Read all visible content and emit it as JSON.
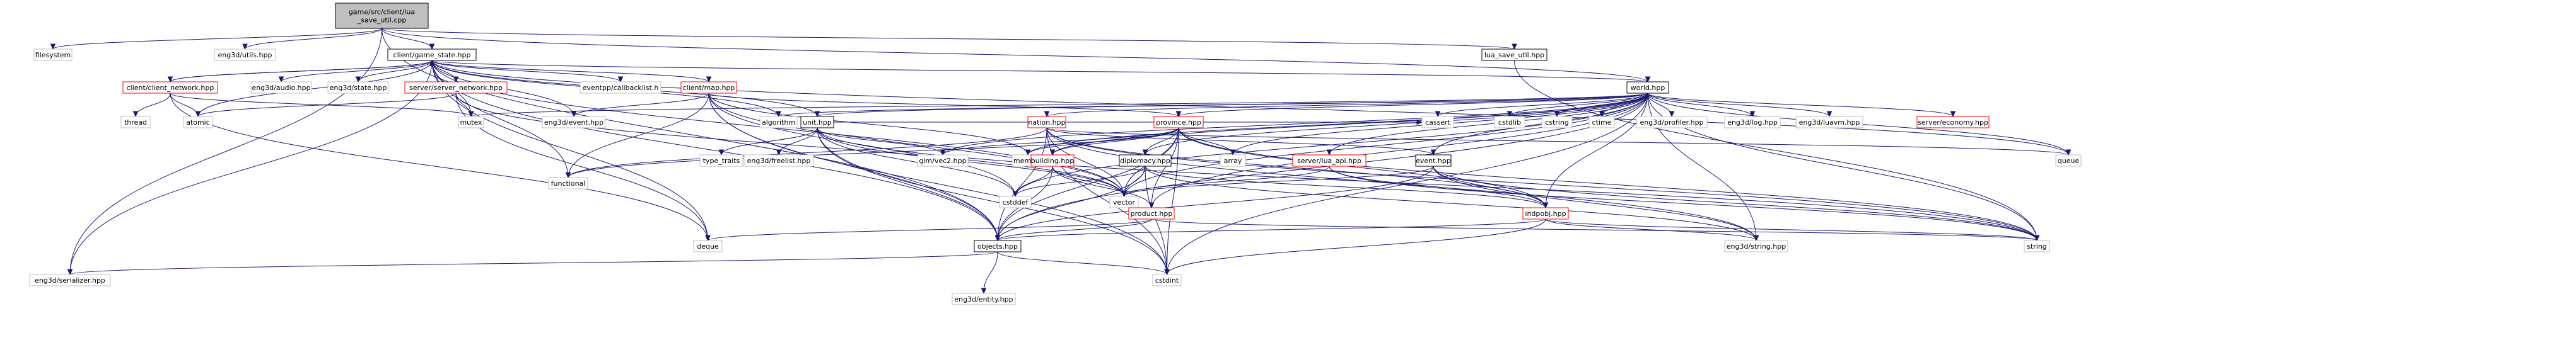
{
  "graph": {
    "nodes": [
      {
        "id": "root",
        "lines": [
          "game/src/client/lua",
          "_save_util.cpp"
        ],
        "fill": "#bfbfbf",
        "stroke": "#000000",
        "link": false
      },
      {
        "id": "filesystem",
        "lines": [
          "filesystem"
        ],
        "fill": "#ffffff",
        "stroke": "#bfbfbf",
        "link": false
      },
      {
        "id": "utils",
        "lines": [
          "eng3d/utils.hpp"
        ],
        "fill": "#ffffff",
        "stroke": "#bfbfbf",
        "link": false
      },
      {
        "id": "lua_save",
        "lines": [
          "lua_save_util.hpp"
        ],
        "fill": "#ffffff",
        "stroke": "#000000",
        "link": true
      },
      {
        "id": "game_state",
        "lines": [
          "client/game_state.hpp"
        ],
        "fill": "#ffffff",
        "stroke": "#000000",
        "link": true
      },
      {
        "id": "world",
        "lines": [
          "world.hpp"
        ],
        "fill": "#ffffff",
        "stroke": "#000000",
        "link": true
      },
      {
        "id": "client_network",
        "lines": [
          "client/client_network.hpp"
        ],
        "fill": "#ffffff",
        "stroke": "#ff0000",
        "link": true
      },
      {
        "id": "audio",
        "lines": [
          "eng3d/audio.hpp"
        ],
        "fill": "#ffffff",
        "stroke": "#bfbfbf",
        "link": false
      },
      {
        "id": "state",
        "lines": [
          "eng3d/state.hpp"
        ],
        "fill": "#ffffff",
        "stroke": "#bfbfbf",
        "link": false
      },
      {
        "id": "server_network",
        "lines": [
          "server/server_network.hpp"
        ],
        "fill": "#ffffff",
        "stroke": "#ff0000",
        "link": true
      },
      {
        "id": "eventpp",
        "lines": [
          "eventpp/callbacklist.h"
        ],
        "fill": "#ffffff",
        "stroke": "#bfbfbf",
        "link": false
      },
      {
        "id": "client_map",
        "lines": [
          "client/map.hpp"
        ],
        "fill": "#ffffff",
        "stroke": "#ff0000",
        "link": true
      },
      {
        "id": "thread",
        "lines": [
          "thread"
        ],
        "fill": "#ffffff",
        "stroke": "#bfbfbf",
        "link": false
      },
      {
        "id": "atomic",
        "lines": [
          "atomic"
        ],
        "fill": "#ffffff",
        "stroke": "#bfbfbf",
        "link": false
      },
      {
        "id": "mutex",
        "lines": [
          "mutex"
        ],
        "fill": "#ffffff",
        "stroke": "#bfbfbf",
        "link": false
      },
      {
        "id": "eng3d_event",
        "lines": [
          "eng3d/event.hpp"
        ],
        "fill": "#ffffff",
        "stroke": "#bfbfbf",
        "link": false
      },
      {
        "id": "algorithm",
        "lines": [
          "algorithm"
        ],
        "fill": "#ffffff",
        "stroke": "#bfbfbf",
        "link": false
      },
      {
        "id": "unit",
        "lines": [
          "unit.hpp"
        ],
        "fill": "#ffffff",
        "stroke": "#000000",
        "link": true
      },
      {
        "id": "province",
        "lines": [
          "province.hpp"
        ],
        "fill": "#ffffff",
        "stroke": "#ff0000",
        "link": true
      },
      {
        "id": "cassert",
        "lines": [
          "cassert"
        ],
        "fill": "#ffffff",
        "stroke": "#bfbfbf",
        "link": false
      },
      {
        "id": "cstdlib",
        "lines": [
          "cstdlib"
        ],
        "fill": "#ffffff",
        "stroke": "#bfbfbf",
        "link": false
      },
      {
        "id": "cstring",
        "lines": [
          "cstring"
        ],
        "fill": "#ffffff",
        "stroke": "#bfbfbf",
        "link": false
      },
      {
        "id": "ctime",
        "lines": [
          "ctime"
        ],
        "fill": "#ffffff",
        "stroke": "#bfbfbf",
        "link": false
      },
      {
        "id": "profiler",
        "lines": [
          "eng3d/profiler.hpp"
        ],
        "fill": "#ffffff",
        "stroke": "#bfbfbf",
        "link": false
      },
      {
        "id": "log",
        "lines": [
          "eng3d/log.hpp"
        ],
        "fill": "#ffffff",
        "stroke": "#bfbfbf",
        "link": false
      },
      {
        "id": "luavm",
        "lines": [
          "eng3d/luavm.hpp"
        ],
        "fill": "#ffffff",
        "stroke": "#bfbfbf",
        "link": false
      },
      {
        "id": "economy",
        "lines": [
          "server/economy.hpp"
        ],
        "fill": "#ffffff",
        "stroke": "#ff0000",
        "link": true
      },
      {
        "id": "nation",
        "lines": [
          "nation.hpp"
        ],
        "fill": "#ffffff",
        "stroke": "#ff0000",
        "link": true
      },
      {
        "id": "queue",
        "lines": [
          "queue"
        ],
        "fill": "#ffffff",
        "stroke": "#bfbfbf",
        "link": false
      },
      {
        "id": "type_traits",
        "lines": [
          "type_traits"
        ],
        "fill": "#ffffff",
        "stroke": "#bfbfbf",
        "link": false
      },
      {
        "id": "freelist",
        "lines": [
          "eng3d/freelist.hpp"
        ],
        "fill": "#ffffff",
        "stroke": "#bfbfbf",
        "link": false
      },
      {
        "id": "glm",
        "lines": [
          "glm/vec2.hpp"
        ],
        "fill": "#ffffff",
        "stroke": "#bfbfbf",
        "link": false
      },
      {
        "id": "memory",
        "lines": [
          "memory"
        ],
        "fill": "#ffffff",
        "stroke": "#bfbfbf",
        "link": false
      },
      {
        "id": "functional",
        "lines": [
          "functional"
        ],
        "fill": "#ffffff",
        "stroke": "#bfbfbf",
        "link": false
      },
      {
        "id": "building",
        "lines": [
          "building.hpp"
        ],
        "fill": "#ffffff",
        "stroke": "#ff0000",
        "link": true
      },
      {
        "id": "diplomacy",
        "lines": [
          "diplomacy.hpp"
        ],
        "fill": "#ffffff",
        "stroke": "#000000",
        "link": true
      },
      {
        "id": "array",
        "lines": [
          "array"
        ],
        "fill": "#ffffff",
        "stroke": "#bfbfbf",
        "link": false
      },
      {
        "id": "lua_api",
        "lines": [
          "server/lua_api.hpp"
        ],
        "fill": "#ffffff",
        "stroke": "#ff0000",
        "link": true
      },
      {
        "id": "event",
        "lines": [
          "event.hpp"
        ],
        "fill": "#ffffff",
        "stroke": "#000000",
        "link": true
      },
      {
        "id": "vector",
        "lines": [
          "vector"
        ],
        "fill": "#ffffff",
        "stroke": "#bfbfbf",
        "link": false
      },
      {
        "id": "cstddef",
        "lines": [
          "cstddef"
        ],
        "fill": "#ffffff",
        "stroke": "#bfbfbf",
        "link": false
      },
      {
        "id": "product",
        "lines": [
          "product.hpp"
        ],
        "fill": "#ffffff",
        "stroke": "#ff0000",
        "link": true
      },
      {
        "id": "indpobj",
        "lines": [
          "indpobj.hpp"
        ],
        "fill": "#ffffff",
        "stroke": "#ff0000",
        "link": true
      },
      {
        "id": "deque",
        "lines": [
          "deque"
        ],
        "fill": "#ffffff",
        "stroke": "#bfbfbf",
        "link": false
      },
      {
        "id": "objects",
        "lines": [
          "objects.hpp"
        ],
        "fill": "#ffffff",
        "stroke": "#000000",
        "link": true
      },
      {
        "id": "string",
        "lines": [
          "string"
        ],
        "fill": "#ffffff",
        "stroke": "#bfbfbf",
        "link": false
      },
      {
        "id": "eng3d_string",
        "lines": [
          "eng3d/string.hpp"
        ],
        "fill": "#ffffff",
        "stroke": "#bfbfbf",
        "link": false
      },
      {
        "id": "serializer",
        "lines": [
          "eng3d/serializer.hpp"
        ],
        "fill": "#ffffff",
        "stroke": "#bfbfbf",
        "link": false
      },
      {
        "id": "cstdint",
        "lines": [
          "cstdint"
        ],
        "fill": "#ffffff",
        "stroke": "#bfbfbf",
        "link": false
      },
      {
        "id": "entity",
        "lines": [
          "eng3d/entity.hpp"
        ],
        "fill": "#ffffff",
        "stroke": "#bfbfbf",
        "link": false
      }
    ],
    "edges": [
      [
        "root",
        "filesystem"
      ],
      [
        "root",
        "utils"
      ],
      [
        "root",
        "lua_save"
      ],
      [
        "root",
        "game_state"
      ],
      [
        "root",
        "world"
      ],
      [
        "root",
        "serializer"
      ],
      [
        "root",
        "objects"
      ],
      [
        "lua_save",
        "string"
      ],
      [
        "game_state",
        "client_network"
      ],
      [
        "game_state",
        "audio"
      ],
      [
        "game_state",
        "state"
      ],
      [
        "game_state",
        "server_network"
      ],
      [
        "game_state",
        "eventpp"
      ],
      [
        "game_state",
        "client_map"
      ],
      [
        "game_state",
        "world"
      ],
      [
        "game_state",
        "atomic"
      ],
      [
        "game_state",
        "mutex"
      ],
      [
        "game_state",
        "eng3d_event"
      ],
      [
        "game_state",
        "algorithm"
      ],
      [
        "game_state",
        "unit"
      ],
      [
        "game_state",
        "functional"
      ],
      [
        "game_state",
        "vector"
      ],
      [
        "game_state",
        "deque"
      ],
      [
        "game_state",
        "queue"
      ],
      [
        "game_state",
        "objects"
      ],
      [
        "game_state",
        "serializer"
      ],
      [
        "client_network",
        "thread"
      ],
      [
        "client_network",
        "atomic"
      ],
      [
        "client_network",
        "mutex"
      ],
      [
        "client_network",
        "deque"
      ],
      [
        "client_network",
        "game_state"
      ],
      [
        "server_network",
        "atomic"
      ],
      [
        "server_network",
        "mutex"
      ],
      [
        "server_network",
        "deque"
      ],
      [
        "server_network",
        "vector"
      ],
      [
        "client_map",
        "eng3d_event"
      ],
      [
        "client_map",
        "functional"
      ],
      [
        "client_map",
        "memory"
      ],
      [
        "client_map",
        "vector"
      ],
      [
        "client_map",
        "province"
      ],
      [
        "client_map",
        "objects"
      ],
      [
        "client_map",
        "cstdint"
      ],
      [
        "client_map",
        "cstddef"
      ],
      [
        "world",
        "mutex"
      ],
      [
        "world",
        "algorithm"
      ],
      [
        "world",
        "unit"
      ],
      [
        "world",
        "province"
      ],
      [
        "world",
        "cassert"
      ],
      [
        "world",
        "cstdlib"
      ],
      [
        "world",
        "cstring"
      ],
      [
        "world",
        "ctime"
      ],
      [
        "world",
        "profiler"
      ],
      [
        "world",
        "log"
      ],
      [
        "world",
        "luavm"
      ],
      [
        "world",
        "economy"
      ],
      [
        "world",
        "nation"
      ],
      [
        "world",
        "queue"
      ],
      [
        "world",
        "glm"
      ],
      [
        "world",
        "memory"
      ],
      [
        "world",
        "building"
      ],
      [
        "world",
        "diplomacy"
      ],
      [
        "world",
        "array"
      ],
      [
        "world",
        "lua_api"
      ],
      [
        "world",
        "event"
      ],
      [
        "world",
        "vector"
      ],
      [
        "world",
        "cstddef"
      ],
      [
        "world",
        "product"
      ],
      [
        "world",
        "indpobj"
      ],
      [
        "world",
        "objects"
      ],
      [
        "world",
        "string"
      ],
      [
        "world",
        "eng3d_string"
      ],
      [
        "world",
        "cstdint"
      ],
      [
        "unit",
        "type_traits"
      ],
      [
        "unit",
        "freelist"
      ],
      [
        "unit",
        "glm"
      ],
      [
        "unit",
        "cassert"
      ],
      [
        "unit",
        "cstddef"
      ],
      [
        "unit",
        "vector"
      ],
      [
        "unit",
        "string"
      ],
      [
        "unit",
        "cstdint"
      ],
      [
        "unit",
        "objects"
      ],
      [
        "province",
        "memory"
      ],
      [
        "province",
        "array"
      ],
      [
        "province",
        "glm"
      ],
      [
        "province",
        "functional"
      ],
      [
        "province",
        "building"
      ],
      [
        "province",
        "diplomacy"
      ],
      [
        "province",
        "product"
      ],
      [
        "province",
        "indpobj"
      ],
      [
        "province",
        "vector"
      ],
      [
        "province",
        "objects"
      ],
      [
        "province",
        "cstdint"
      ],
      [
        "province",
        "string"
      ],
      [
        "nation",
        "functional"
      ],
      [
        "nation",
        "vector"
      ],
      [
        "nation",
        "event"
      ],
      [
        "nation",
        "indpobj"
      ],
      [
        "nation",
        "objects"
      ],
      [
        "nation",
        "string"
      ],
      [
        "nation",
        "cstdint"
      ],
      [
        "nation",
        "eng3d_string"
      ],
      [
        "nation",
        "queue"
      ],
      [
        "building",
        "vector"
      ],
      [
        "building",
        "product"
      ],
      [
        "building",
        "objects"
      ],
      [
        "building",
        "cstddef"
      ],
      [
        "diplomacy",
        "cstddef"
      ],
      [
        "diplomacy",
        "vector"
      ],
      [
        "diplomacy",
        "objects"
      ],
      [
        "diplomacy",
        "cstdint"
      ],
      [
        "diplomacy",
        "indpobj"
      ],
      [
        "diplomacy",
        "eng3d_string"
      ],
      [
        "lua_api",
        "string"
      ],
      [
        "lua_api",
        "vector"
      ],
      [
        "lua_api",
        "indpobj"
      ],
      [
        "event",
        "vector"
      ],
      [
        "event",
        "string"
      ],
      [
        "event",
        "indpobj"
      ],
      [
        "event",
        "objects"
      ],
      [
        "event",
        "eng3d_string"
      ],
      [
        "product",
        "deque"
      ],
      [
        "product",
        "objects"
      ],
      [
        "product",
        "string"
      ],
      [
        "indpobj",
        "objects"
      ],
      [
        "indpobj",
        "string"
      ],
      [
        "indpobj",
        "eng3d_string"
      ],
      [
        "indpobj",
        "cstdint"
      ],
      [
        "objects",
        "serializer"
      ],
      [
        "objects",
        "entity"
      ],
      [
        "objects",
        "cstdint"
      ]
    ]
  }
}
